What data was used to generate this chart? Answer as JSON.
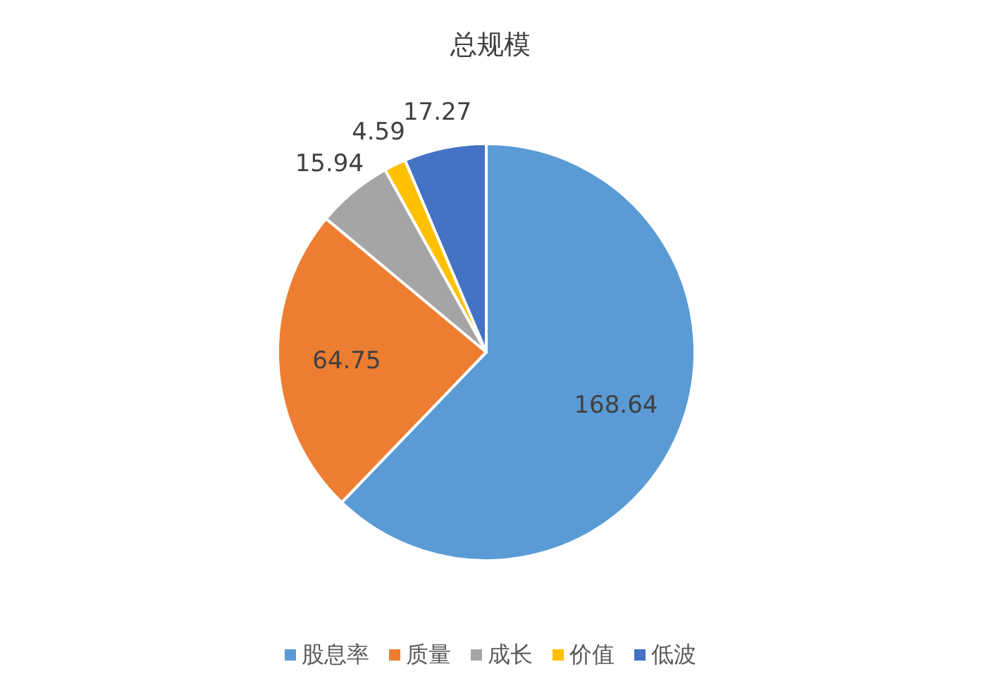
{
  "chart_data": {
    "type": "pie",
    "title": "总规模",
    "categories": [
      "股息率",
      "质量",
      "成长",
      "价值",
      "低波"
    ],
    "values": [
      168.64,
      64.75,
      15.94,
      4.59,
      17.27
    ],
    "colors": [
      "#5b9bd5",
      "#ed7d31",
      "#a5a5a5",
      "#ffc000",
      "#4472c4"
    ],
    "data_labels": true,
    "legend": "bottom"
  }
}
